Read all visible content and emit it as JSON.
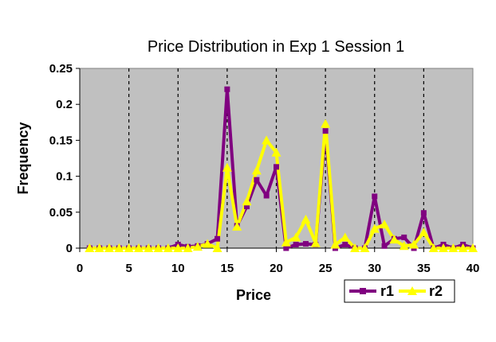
{
  "chart_data": {
    "type": "line",
    "title": "Price Distribution in Exp 1 Session 1",
    "xlabel": "Price",
    "ylabel": "Frequency",
    "xlim": [
      0,
      40
    ],
    "ylim": [
      0,
      0.25
    ],
    "x_ticks": [
      "0",
      "5",
      "10",
      "15",
      "20",
      "25",
      "30",
      "35",
      "40"
    ],
    "y_ticks": [
      "0",
      "0.05",
      "0.1",
      "0.15",
      "0.2",
      "0.25"
    ],
    "x_tick_values": [
      0,
      5,
      10,
      15,
      20,
      25,
      30,
      35,
      40
    ],
    "y_tick_values": [
      0,
      0.05,
      0.1,
      0.15,
      0.2,
      0.25
    ],
    "vertical_gridlines": [
      5,
      10,
      15,
      20,
      25,
      30,
      35
    ],
    "plot_background": "#c0c0c0",
    "legend_position": "bottom-right",
    "x": [
      1,
      2,
      3,
      4,
      5,
      6,
      7,
      8,
      9,
      10,
      11,
      12,
      13,
      14,
      15,
      16,
      17,
      18,
      19,
      20,
      21,
      22,
      23,
      24,
      25,
      26,
      27,
      28,
      29,
      30,
      31,
      32,
      33,
      34,
      35,
      36,
      37,
      38,
      39,
      40
    ],
    "series": [
      {
        "name": "r1",
        "color": "#800080",
        "marker": "square",
        "values": [
          0,
          0,
          0,
          0,
          0,
          0,
          0,
          0,
          0,
          0.005,
          0.002,
          0.003,
          0.006,
          0.013,
          0.221,
          0.031,
          0.058,
          0.095,
          0.073,
          0.113,
          0,
          0.005,
          0.006,
          0.005,
          0.163,
          0,
          0.005,
          0,
          0,
          0.072,
          0.003,
          0.013,
          0.015,
          0,
          0.049,
          0,
          0.005,
          0,
          0.005,
          0
        ]
      },
      {
        "name": "r2",
        "color": "#ffff00",
        "marker": "triangle",
        "values": [
          0,
          0,
          0,
          0,
          0,
          0,
          0,
          0,
          0,
          0,
          0,
          0.002,
          0.006,
          0,
          0.112,
          0.03,
          0.065,
          0.108,
          0.15,
          0.133,
          0.008,
          0.015,
          0.04,
          0.007,
          0.173,
          0.005,
          0.015,
          0,
          0,
          0.027,
          0.033,
          0.012,
          0.003,
          0.005,
          0.022,
          0,
          0,
          0,
          0,
          0
        ]
      }
    ]
  }
}
